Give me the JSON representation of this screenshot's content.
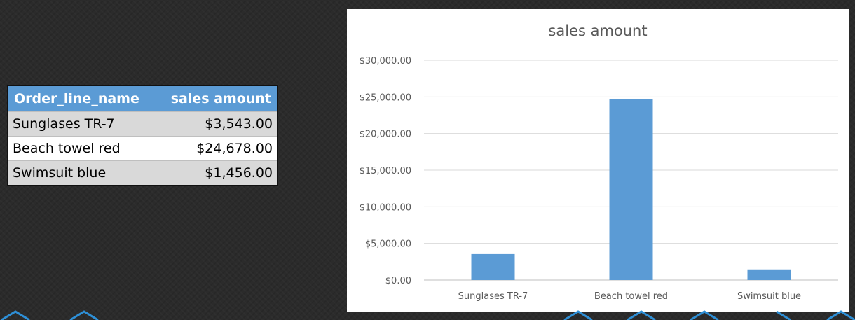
{
  "table": {
    "headers": [
      "Order_line_name",
      "sales amount"
    ],
    "rows": [
      [
        "Sunglases TR-7",
        "$3,543.00"
      ],
      [
        "Beach towel red",
        "$24,678.00"
      ],
      [
        "Swimsuit blue",
        "$1,456.00"
      ]
    ]
  },
  "chart_data": {
    "type": "bar",
    "title": "sales amount",
    "xlabel": "",
    "ylabel": "",
    "categories": [
      "Sunglases TR-7",
      "Beach towel red",
      "Swimsuit blue"
    ],
    "values": [
      3543,
      24678,
      1456
    ],
    "ylim": [
      0,
      30000
    ],
    "yticks": [
      0,
      5000,
      10000,
      15000,
      20000,
      25000,
      30000
    ],
    "ytick_labels": [
      "$0.00",
      "$5,000.00",
      "$10,000.00",
      "$15,000.00",
      "$20,000.00",
      "$25,000.00",
      "$30,000.00"
    ],
    "grid": true,
    "bar_color": "#5b9bd5"
  }
}
